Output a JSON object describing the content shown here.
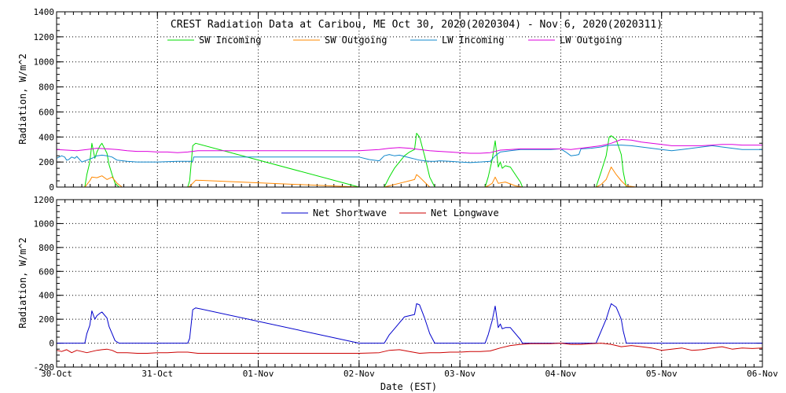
{
  "chart_data": [
    {
      "id": "top",
      "type": "line",
      "title": "CREST Radiation Data at Caribou, ME   Oct 30, 2020(2020304) - Nov  6, 2020(2020311)",
      "ylabel": "Radiation, W/m^2",
      "ylim": [
        0,
        1400
      ],
      "yticks": [
        0,
        200,
        400,
        600,
        800,
        1000,
        1200,
        1400
      ],
      "xlim": [
        0,
        7
      ],
      "grid": true,
      "legend": "top",
      "series": [
        {
          "name": "SW Incoming",
          "color": "#00dd00",
          "x": [
            0.0,
            0.17,
            0.28,
            0.3,
            0.33,
            0.35,
            0.38,
            0.4,
            0.43,
            0.45,
            0.5,
            0.52,
            0.55,
            0.58,
            0.62,
            0.65,
            0.7,
            0.72,
            1.3,
            1.32,
            1.35,
            1.38,
            3.0,
            3.25,
            3.3,
            3.35,
            3.4,
            3.45,
            3.5,
            3.55,
            3.57,
            3.6,
            3.65,
            3.7,
            3.75,
            3.8,
            4.25,
            4.28,
            4.32,
            4.35,
            4.38,
            4.4,
            4.42,
            4.45,
            4.5,
            4.55,
            4.6,
            4.62,
            4.65,
            4.7,
            4.72,
            4.74,
            5.3,
            5.35,
            5.4,
            5.45,
            5.48,
            5.5,
            5.55,
            5.6,
            5.62,
            5.65,
            5.7,
            5.75,
            7.0
          ],
          "y": [
            0,
            0,
            0,
            100,
            200,
            350,
            230,
            280,
            330,
            350,
            270,
            180,
            100,
            30,
            0,
            0,
            0,
            0,
            0,
            50,
            330,
            350,
            0,
            0,
            80,
            150,
            200,
            250,
            280,
            300,
            430,
            400,
            250,
            80,
            0,
            0,
            0,
            80,
            220,
            370,
            160,
            200,
            150,
            170,
            160,
            100,
            40,
            0,
            0,
            0,
            0,
            0,
            0,
            0,
            120,
            250,
            400,
            410,
            380,
            260,
            120,
            0,
            0,
            0,
            0
          ]
        },
        {
          "name": "SW Outgoing",
          "color": "#ff8800",
          "x": [
            0.0,
            0.28,
            0.3,
            0.33,
            0.35,
            0.4,
            0.45,
            0.5,
            0.55,
            0.6,
            0.65,
            0.72,
            1.3,
            1.32,
            1.35,
            1.38,
            3.0,
            3.25,
            3.3,
            3.4,
            3.5,
            3.55,
            3.57,
            3.6,
            3.65,
            3.7,
            4.25,
            4.28,
            4.32,
            4.35,
            4.38,
            4.45,
            4.55,
            4.62,
            5.3,
            5.35,
            5.4,
            5.45,
            5.48,
            5.5,
            5.55,
            5.6,
            5.65,
            5.75,
            7.0
          ],
          "y": [
            0,
            0,
            20,
            50,
            80,
            75,
            90,
            60,
            80,
            30,
            0,
            0,
            0,
            5,
            30,
            55,
            0,
            0,
            10,
            30,
            50,
            60,
            100,
            80,
            40,
            0,
            0,
            10,
            30,
            80,
            30,
            40,
            10,
            0,
            0,
            0,
            20,
            60,
            120,
            160,
            100,
            50,
            10,
            0,
            0
          ]
        },
        {
          "name": "LW Incoming",
          "color": "#1188cc",
          "x": [
            0.0,
            0.05,
            0.08,
            0.1,
            0.12,
            0.15,
            0.18,
            0.2,
            0.25,
            0.3,
            0.35,
            0.4,
            0.45,
            0.5,
            0.55,
            0.6,
            0.7,
            0.8,
            0.9,
            1.0,
            1.2,
            1.35,
            1.36,
            1.4,
            2.0,
            3.0,
            3.1,
            3.2,
            3.25,
            3.3,
            3.35,
            3.4,
            3.45,
            3.5,
            3.55,
            3.6,
            3.65,
            3.7,
            3.75,
            3.8,
            3.9,
            4.0,
            4.1,
            4.2,
            4.3,
            4.35,
            4.4,
            4.5,
            4.6,
            4.7,
            4.8,
            4.9,
            5.0,
            5.05,
            5.1,
            5.15,
            5.18,
            5.2,
            5.3,
            5.4,
            5.45,
            5.5,
            5.6,
            5.7,
            5.8,
            5.9,
            6.0,
            6.1,
            6.2,
            6.3,
            6.4,
            6.5,
            6.6,
            6.7,
            6.8,
            6.9,
            7.0
          ],
          "y": [
            230,
            250,
            240,
            215,
            220,
            240,
            230,
            245,
            200,
            215,
            230,
            250,
            255,
            250,
            240,
            215,
            205,
            200,
            200,
            200,
            205,
            205,
            240,
            240,
            240,
            240,
            220,
            210,
            250,
            260,
            250,
            255,
            245,
            235,
            225,
            215,
            210,
            205,
            205,
            210,
            205,
            200,
            195,
            200,
            205,
            250,
            280,
            290,
            300,
            300,
            300,
            300,
            305,
            280,
            250,
            255,
            260,
            305,
            310,
            320,
            330,
            335,
            335,
            330,
            320,
            310,
            300,
            290,
            300,
            310,
            320,
            330,
            320,
            310,
            300,
            300,
            300
          ]
        },
        {
          "name": "LW Outgoing",
          "color": "#dd00dd",
          "x": [
            0.0,
            0.1,
            0.2,
            0.3,
            0.4,
            0.5,
            0.6,
            0.7,
            0.8,
            0.9,
            1.0,
            1.1,
            1.2,
            1.3,
            1.4,
            1.5,
            2.0,
            3.0,
            3.1,
            3.2,
            3.3,
            3.4,
            3.5,
            3.6,
            3.7,
            3.8,
            3.9,
            4.0,
            4.1,
            4.2,
            4.3,
            4.4,
            4.5,
            4.6,
            4.7,
            4.8,
            4.9,
            5.0,
            5.1,
            5.2,
            5.3,
            5.4,
            5.5,
            5.6,
            5.7,
            5.8,
            5.9,
            6.0,
            6.1,
            6.2,
            6.3,
            6.4,
            6.5,
            6.6,
            6.7,
            6.8,
            6.9,
            7.0
          ],
          "y": [
            300,
            295,
            290,
            300,
            310,
            305,
            300,
            290,
            285,
            285,
            280,
            280,
            275,
            280,
            290,
            290,
            290,
            290,
            295,
            300,
            310,
            315,
            310,
            300,
            290,
            285,
            280,
            275,
            270,
            270,
            275,
            295,
            300,
            305,
            305,
            305,
            305,
            305,
            300,
            310,
            320,
            330,
            350,
            380,
            375,
            360,
            350,
            340,
            330,
            330,
            330,
            330,
            335,
            340,
            340,
            335,
            335,
            335
          ]
        }
      ]
    },
    {
      "id": "bottom",
      "type": "line",
      "ylabel": "Radiation, W/m^2",
      "xlabel": "Date (EST)",
      "ylim": [
        -200,
        1200
      ],
      "yticks": [
        -200,
        0,
        200,
        400,
        600,
        800,
        1000,
        1200
      ],
      "xlim": [
        0,
        7
      ],
      "xticks": [
        "30-Oct",
        "31-Oct",
        "01-Nov",
        "02-Nov",
        "03-Nov",
        "04-Nov",
        "05-Nov",
        "06-Nov"
      ],
      "grid": true,
      "legend": "top",
      "series": [
        {
          "name": "Net Shortwave",
          "color": "#0000cc",
          "x": [
            0.0,
            0.28,
            0.3,
            0.33,
            0.35,
            0.38,
            0.4,
            0.43,
            0.45,
            0.5,
            0.52,
            0.55,
            0.58,
            0.62,
            0.65,
            0.72,
            1.3,
            1.32,
            1.35,
            1.38,
            3.0,
            3.25,
            3.3,
            3.35,
            3.4,
            3.45,
            3.5,
            3.55,
            3.57,
            3.6,
            3.65,
            3.7,
            3.75,
            3.8,
            4.25,
            4.28,
            4.32,
            4.35,
            4.38,
            4.4,
            4.42,
            4.45,
            4.5,
            4.55,
            4.6,
            4.62,
            4.65,
            4.7,
            5.3,
            5.35,
            5.4,
            5.45,
            5.48,
            5.5,
            5.55,
            5.6,
            5.62,
            5.65,
            5.75,
            7.0
          ],
          "y": [
            0,
            0,
            80,
            150,
            270,
            200,
            230,
            250,
            260,
            210,
            140,
            80,
            20,
            0,
            0,
            0,
            0,
            40,
            280,
            295,
            0,
            0,
            70,
            120,
            170,
            220,
            230,
            240,
            330,
            320,
            210,
            80,
            0,
            0,
            0,
            70,
            190,
            310,
            130,
            160,
            120,
            130,
            130,
            80,
            30,
            0,
            0,
            0,
            0,
            0,
            100,
            200,
            280,
            330,
            300,
            200,
            100,
            0,
            0,
            0
          ]
        },
        {
          "name": "Net Longwave",
          "color": "#cc0000",
          "x": [
            0.0,
            0.05,
            0.1,
            0.15,
            0.2,
            0.25,
            0.3,
            0.35,
            0.4,
            0.45,
            0.5,
            0.55,
            0.6,
            0.7,
            0.8,
            0.9,
            1.0,
            1.1,
            1.2,
            1.3,
            1.4,
            2.0,
            3.0,
            3.2,
            3.3,
            3.4,
            3.5,
            3.6,
            3.7,
            3.8,
            3.9,
            4.0,
            4.1,
            4.2,
            4.3,
            4.4,
            4.5,
            4.6,
            4.7,
            4.8,
            4.9,
            5.0,
            5.1,
            5.2,
            5.3,
            5.4,
            5.5,
            5.6,
            5.7,
            5.8,
            5.9,
            6.0,
            6.1,
            6.2,
            6.3,
            6.4,
            6.5,
            6.6,
            6.7,
            6.8,
            6.9,
            7.0
          ],
          "y": [
            -60,
            -70,
            -55,
            -80,
            -60,
            -70,
            -80,
            -70,
            -60,
            -55,
            -50,
            -60,
            -80,
            -80,
            -85,
            -85,
            -80,
            -80,
            -75,
            -75,
            -85,
            -85,
            -85,
            -80,
            -60,
            -55,
            -70,
            -85,
            -80,
            -80,
            -75,
            -75,
            -70,
            -70,
            -65,
            -40,
            -20,
            -10,
            -5,
            -5,
            -5,
            0,
            -10,
            -10,
            -5,
            0,
            -10,
            -30,
            -20,
            -30,
            -40,
            -60,
            -50,
            -40,
            -60,
            -55,
            -40,
            -30,
            -50,
            -40,
            -45,
            -40
          ]
        }
      ]
    }
  ]
}
